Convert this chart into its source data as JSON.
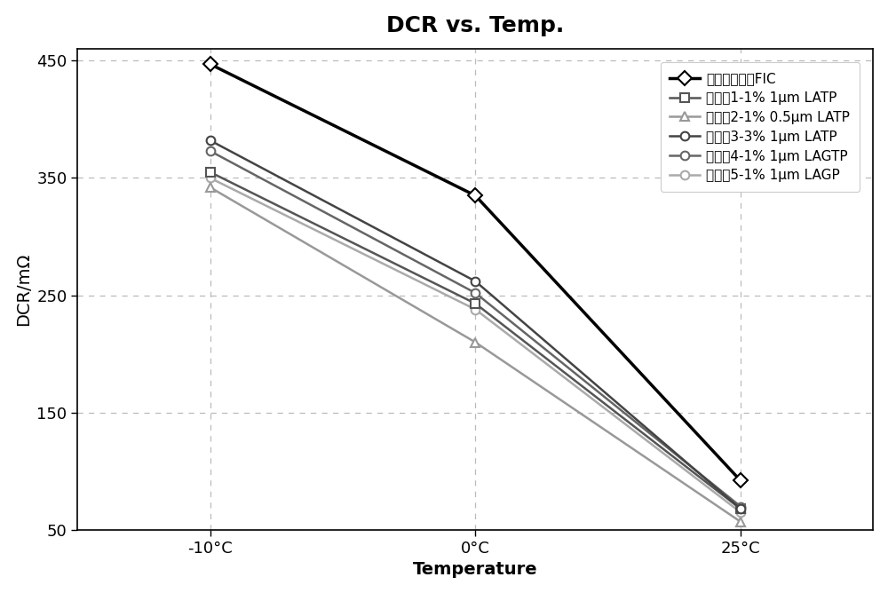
{
  "title": "DCR vs. Temp.",
  "xlabel": "Temperature",
  "ylabel": "DCR/mΩ",
  "x_labels": [
    "-10°C",
    "0°C",
    "25°C"
  ],
  "x_values": [
    0,
    1,
    2
  ],
  "ylim": [
    50,
    460
  ],
  "yticks": [
    50,
    150,
    250,
    350,
    450
  ],
  "series": [
    {
      "label": "对比例未添加FIC",
      "values": [
        447,
        335,
        92
      ],
      "color": "#000000",
      "linewidth": 2.5,
      "marker": "D",
      "markersize": 8,
      "linestyle": "-",
      "markerfacecolor": "white",
      "zorder": 10
    },
    {
      "label": "实施例1-1% 1μm LATP",
      "values": [
        355,
        243,
        68
      ],
      "color": "#555555",
      "linewidth": 1.8,
      "marker": "s",
      "markersize": 7,
      "linestyle": "-",
      "markerfacecolor": "white",
      "zorder": 6
    },
    {
      "label": "实施例2-1% 0.5μm LATP",
      "values": [
        342,
        210,
        57
      ],
      "color": "#999999",
      "linewidth": 1.8,
      "marker": "^",
      "markersize": 7,
      "linestyle": "-",
      "markerfacecolor": "white",
      "zorder": 5
    },
    {
      "label": "实施例3-3% 1μm LATP",
      "values": [
        382,
        262,
        68
      ],
      "color": "#444444",
      "linewidth": 1.8,
      "marker": "o",
      "markersize": 7,
      "linestyle": "-",
      "markerfacecolor": "white",
      "zorder": 8
    },
    {
      "label": "实施例4-1% 1μm LAGTP",
      "values": [
        373,
        252,
        70
      ],
      "color": "#666666",
      "linewidth": 1.8,
      "marker": "o",
      "markersize": 7,
      "linestyle": "-",
      "markerfacecolor": "white",
      "zorder": 7
    },
    {
      "label": "实施例5-1% 1μm LAGP",
      "values": [
        350,
        238,
        65
      ],
      "color": "#aaaaaa",
      "linewidth": 1.8,
      "marker": "o",
      "markersize": 7,
      "linestyle": "-",
      "markerfacecolor": "white",
      "zorder": 4
    }
  ],
  "background_color": "#ffffff",
  "grid_color": "#bbbbbb",
  "title_fontsize": 18,
  "label_fontsize": 14,
  "tick_fontsize": 13,
  "legend_fontsize": 11
}
